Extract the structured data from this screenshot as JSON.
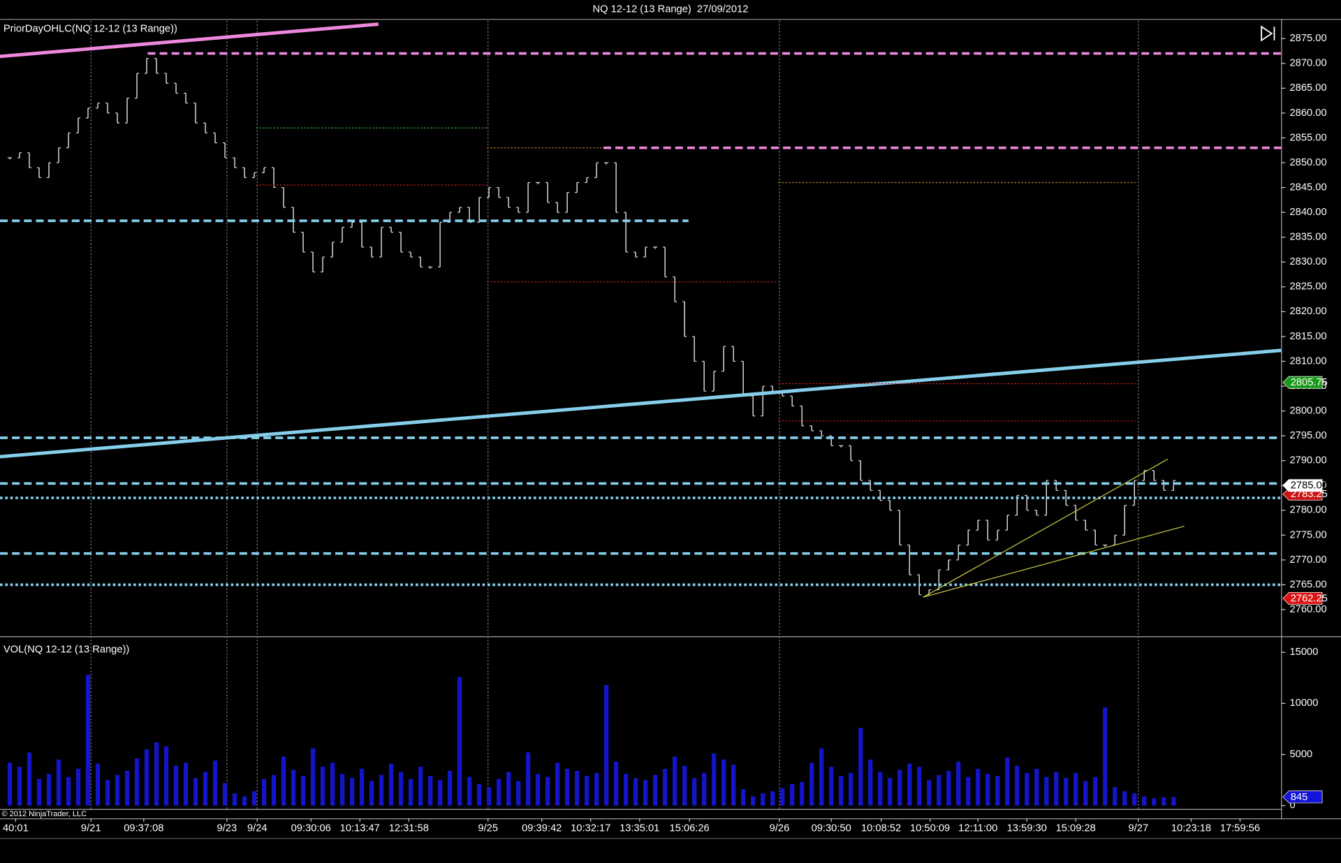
{
  "footer": "© 2012 NinjaTrader, LLC",
  "chart_data": [
    {
      "type": "range_bar",
      "title": "NQ 12-12 (13 Range)  27/09/2012",
      "label": "PriorDayOHLC(NQ 12-12 (13 Range))",
      "color": "#dcdcdc",
      "xlim": [
        -1,
        130
      ],
      "ylim": [
        2754.8,
        2878.6
      ],
      "yticks": [
        {
          "value": 2760,
          "label": "2760.00"
        },
        {
          "value": 2765,
          "label": "2765.00"
        },
        {
          "value": 2770,
          "label": "2770.00"
        },
        {
          "value": 2775,
          "label": "2775.00"
        },
        {
          "value": 2780,
          "label": "2780.00"
        },
        {
          "value": 2785,
          "label": "2785.00"
        },
        {
          "value": 2790,
          "label": "2790.00"
        },
        {
          "value": 2795,
          "label": "2795.00"
        },
        {
          "value": 2800,
          "label": "2800.00"
        },
        {
          "value": 2805,
          "label": "2805.00"
        },
        {
          "value": 2810,
          "label": "2810.00"
        },
        {
          "value": 2815,
          "label": "2815.00"
        },
        {
          "value": 2820,
          "label": "2820.00"
        },
        {
          "value": 2825,
          "label": "2825.00"
        },
        {
          "value": 2830,
          "label": "2830.00"
        },
        {
          "value": 2835,
          "label": "2835.00"
        },
        {
          "value": 2840,
          "label": "2840.00"
        },
        {
          "value": 2845,
          "label": "2845.00"
        },
        {
          "value": 2850,
          "label": "2850.00"
        },
        {
          "value": 2855,
          "label": "2855.00"
        },
        {
          "value": 2860,
          "label": "2860.00"
        },
        {
          "value": 2865,
          "label": "2865.00"
        },
        {
          "value": 2870,
          "label": "2870.00"
        },
        {
          "value": 2875,
          "label": "2875.00"
        }
      ],
      "values": [
        2851,
        2852,
        2849,
        2847,
        2850,
        2853,
        2856,
        2859,
        2861,
        2862,
        2860,
        2858,
        2863,
        2868,
        2871,
        2868,
        2866,
        2864,
        2862,
        2858,
        2856,
        2854,
        2851,
        2849,
        2847,
        2848,
        2849,
        2845,
        2841,
        2836,
        2832,
        2828,
        2831,
        2834,
        2837,
        2838,
        2833,
        2831,
        2837,
        2836,
        2832,
        2831,
        2829,
        2829,
        2838,
        2840,
        2841,
        2838,
        2843,
        2845,
        2843,
        2841,
        2840,
        2846,
        2846,
        2842,
        2840,
        2844,
        2846,
        2847,
        2850,
        2850,
        2840,
        2832,
        2831,
        2833,
        2833,
        2827,
        2822,
        2815,
        2810,
        2804,
        2808,
        2813,
        2810,
        2803,
        2799,
        2805,
        2804,
        2803,
        2801,
        2797,
        2796,
        2795,
        2793,
        2793,
        2790,
        2786,
        2784,
        2782,
        2780,
        2773,
        2767,
        2763,
        2764,
        2768,
        2770,
        2773,
        2776,
        2778,
        2774,
        2776,
        2779,
        2783,
        2780,
        2779,
        2786,
        2784,
        2781,
        2778,
        2776,
        2773,
        2773,
        2775,
        2781,
        2786,
        2788,
        2786,
        2784,
        2786
      ],
      "drawings": [
        {
          "color": "#ee88dd",
          "style": "solid",
          "width": 4,
          "x": [
            -1,
            37.7
          ],
          "y": [
            2871.4,
            2877.9
          ]
        },
        {
          "color": "#87ceeb",
          "style": "solid",
          "width": 4,
          "x": [
            -1,
            130
          ],
          "y": [
            2790.8,
            2812.2
          ]
        },
        {
          "color": "#ee88dd",
          "style": "dash",
          "width": 3,
          "x": [
            14.1,
            130
          ],
          "y": [
            2872,
            2872
          ]
        },
        {
          "color": "#ee88dd",
          "style": "dash",
          "width": 3,
          "x": [
            60.7,
            130
          ],
          "y": [
            2853,
            2853
          ]
        },
        {
          "color": "#87ceeb",
          "style": "dash",
          "width": 3,
          "x": [
            -1,
            69.4
          ],
          "y": [
            2838.3,
            2838.3
          ]
        },
        {
          "color": "#87ceeb",
          "style": "dash",
          "width": 3,
          "x": [
            -1,
            130
          ],
          "y": [
            2794.6,
            2794.6
          ]
        },
        {
          "color": "#87ceeb",
          "style": "dash",
          "width": 3,
          "x": [
            -1,
            130
          ],
          "y": [
            2785.4,
            2785.4
          ]
        },
        {
          "color": "#87ceeb",
          "style": "dot",
          "width": 3,
          "x": [
            -1,
            130
          ],
          "y": [
            2782.5,
            2782.5
          ]
        },
        {
          "color": "#87ceeb",
          "style": "dash",
          "width": 3,
          "x": [
            -1,
            130
          ],
          "y": [
            2771.3,
            2771.3
          ]
        },
        {
          "color": "#87ceeb",
          "style": "dot",
          "width": 3,
          "x": [
            -1,
            130
          ],
          "y": [
            2765,
            2765
          ]
        },
        {
          "color": "#cccc44",
          "style": "solid",
          "width": 1,
          "x": [
            93.4,
            118.4
          ],
          "y": [
            2762.5,
            2790.3
          ]
        },
        {
          "color": "#cccc44",
          "style": "solid",
          "width": 1,
          "x": [
            93.4,
            120.1
          ],
          "y": [
            2762.5,
            2776.8
          ]
        },
        {
          "color": "#cc2222",
          "style": "dot",
          "width": 1,
          "x": [
            78.6,
            115.1
          ],
          "y": [
            2805.5,
            2805.5
          ]
        },
        {
          "color": "#cc2222",
          "style": "dot",
          "width": 1,
          "x": [
            78.6,
            115.1
          ],
          "y": [
            2798,
            2798
          ]
        },
        {
          "color": "#cc8833",
          "style": "dot",
          "width": 1,
          "x": [
            78.6,
            115.1
          ],
          "y": [
            2846,
            2846
          ]
        },
        {
          "color": "#cc2222",
          "style": "dot",
          "width": 1,
          "x": [
            48.8,
            78.6
          ],
          "y": [
            2826,
            2826
          ]
        },
        {
          "color": "#cc8833",
          "style": "dot",
          "width": 1,
          "x": [
            48.8,
            60.7
          ],
          "y": [
            2853,
            2853
          ]
        },
        {
          "color": "#cc2222",
          "style": "dot",
          "width": 1,
          "x": [
            25.2,
            48.8
          ],
          "y": [
            2845.5,
            2845.5
          ]
        },
        {
          "color": "#44aa44",
          "style": "dot",
          "width": 1,
          "x": [
            25.2,
            48.8
          ],
          "y": [
            2857,
            2857
          ]
        }
      ],
      "price_markers": [
        {
          "value": 2805.75,
          "label": "2805.75",
          "color": "#1a9a1a"
        },
        {
          "value": 2783.25,
          "label": "2783.25",
          "color": "#cc1111"
        },
        {
          "value": 2785,
          "label": "2785.00",
          "color": "#ffffff"
        },
        {
          "value": 2762.25,
          "label": "2762.25",
          "color": "#dd1111"
        }
      ]
    },
    {
      "type": "bar",
      "label": "VOL(NQ 12-12 (13 Range))",
      "color": "#1414c8",
      "xlim": [
        -1,
        130
      ],
      "ylim": [
        -166,
        16400
      ],
      "yticks": [
        0,
        5000,
        10000,
        15000
      ],
      "xticks": [
        {
          "value": 0.6,
          "label": "40:01"
        },
        {
          "value": 8.3,
          "label": "9/21"
        },
        {
          "value": 13.7,
          "label": "09:37:08"
        },
        {
          "value": 22.2,
          "label": "9/23"
        },
        {
          "value": 25.3,
          "label": "9/24"
        },
        {
          "value": 30.8,
          "label": "09:30:06"
        },
        {
          "value": 35.8,
          "label": "10:13:47"
        },
        {
          "value": 40.8,
          "label": "12:31:58"
        },
        {
          "value": 48.9,
          "label": "9/25"
        },
        {
          "value": 54.4,
          "label": "09:39:42"
        },
        {
          "value": 59.4,
          "label": "10:32:17"
        },
        {
          "value": 64.4,
          "label": "13:35:01"
        },
        {
          "value": 69.5,
          "label": "15:06:26"
        },
        {
          "value": 78.7,
          "label": "9/26"
        },
        {
          "value": 84,
          "label": "09:30:50"
        },
        {
          "value": 89.1,
          "label": "10:08:52"
        },
        {
          "value": 94.1,
          "label": "10:50:09"
        },
        {
          "value": 99,
          "label": "12:11:00"
        },
        {
          "value": 104,
          "label": "13:59:30"
        },
        {
          "value": 109,
          "label": "15:09:28"
        },
        {
          "value": 115.4,
          "label": "9/27"
        },
        {
          "value": 120.8,
          "label": "10:23:18"
        },
        {
          "value": 125.8,
          "label": "17:59:56"
        }
      ],
      "values": [
        4200,
        3800,
        5200,
        2600,
        3100,
        4500,
        2800,
        3600,
        12800,
        4100,
        2500,
        3000,
        3400,
        4600,
        5500,
        6200,
        5800,
        3900,
        4200,
        2700,
        3300,
        4400,
        2200,
        1200,
        900,
        1400,
        2600,
        3000,
        4800,
        3500,
        2900,
        5600,
        3800,
        4200,
        3100,
        2700,
        3600,
        2400,
        3000,
        4100,
        3300,
        2600,
        3800,
        2900,
        2500,
        3400,
        12600,
        2800,
        2100,
        1800,
        2600,
        3300,
        2400,
        5200,
        3100,
        2800,
        4200,
        3600,
        3400,
        2900,
        3200,
        11800,
        4300,
        3100,
        2700,
        2500,
        3000,
        3600,
        4800,
        3900,
        2700,
        3200,
        5100,
        4500,
        4000,
        1600,
        900,
        1200,
        1400,
        1700,
        2100,
        2300,
        4200,
        5600,
        3800,
        2900,
        3200,
        7600,
        4500,
        3300,
        2700,
        3500,
        4100,
        3800,
        2500,
        3000,
        3400,
        4300,
        2800,
        3600,
        3100,
        2900,
        4700,
        3900,
        3200,
        3600,
        2800,
        3300,
        2700,
        3200,
        2400,
        2800,
        9600,
        1800,
        1400,
        1200,
        900,
        700,
        800,
        845
      ],
      "price_markers": [
        {
          "value": 845,
          "label": "845",
          "color": "#1414d8"
        }
      ]
    }
  ]
}
